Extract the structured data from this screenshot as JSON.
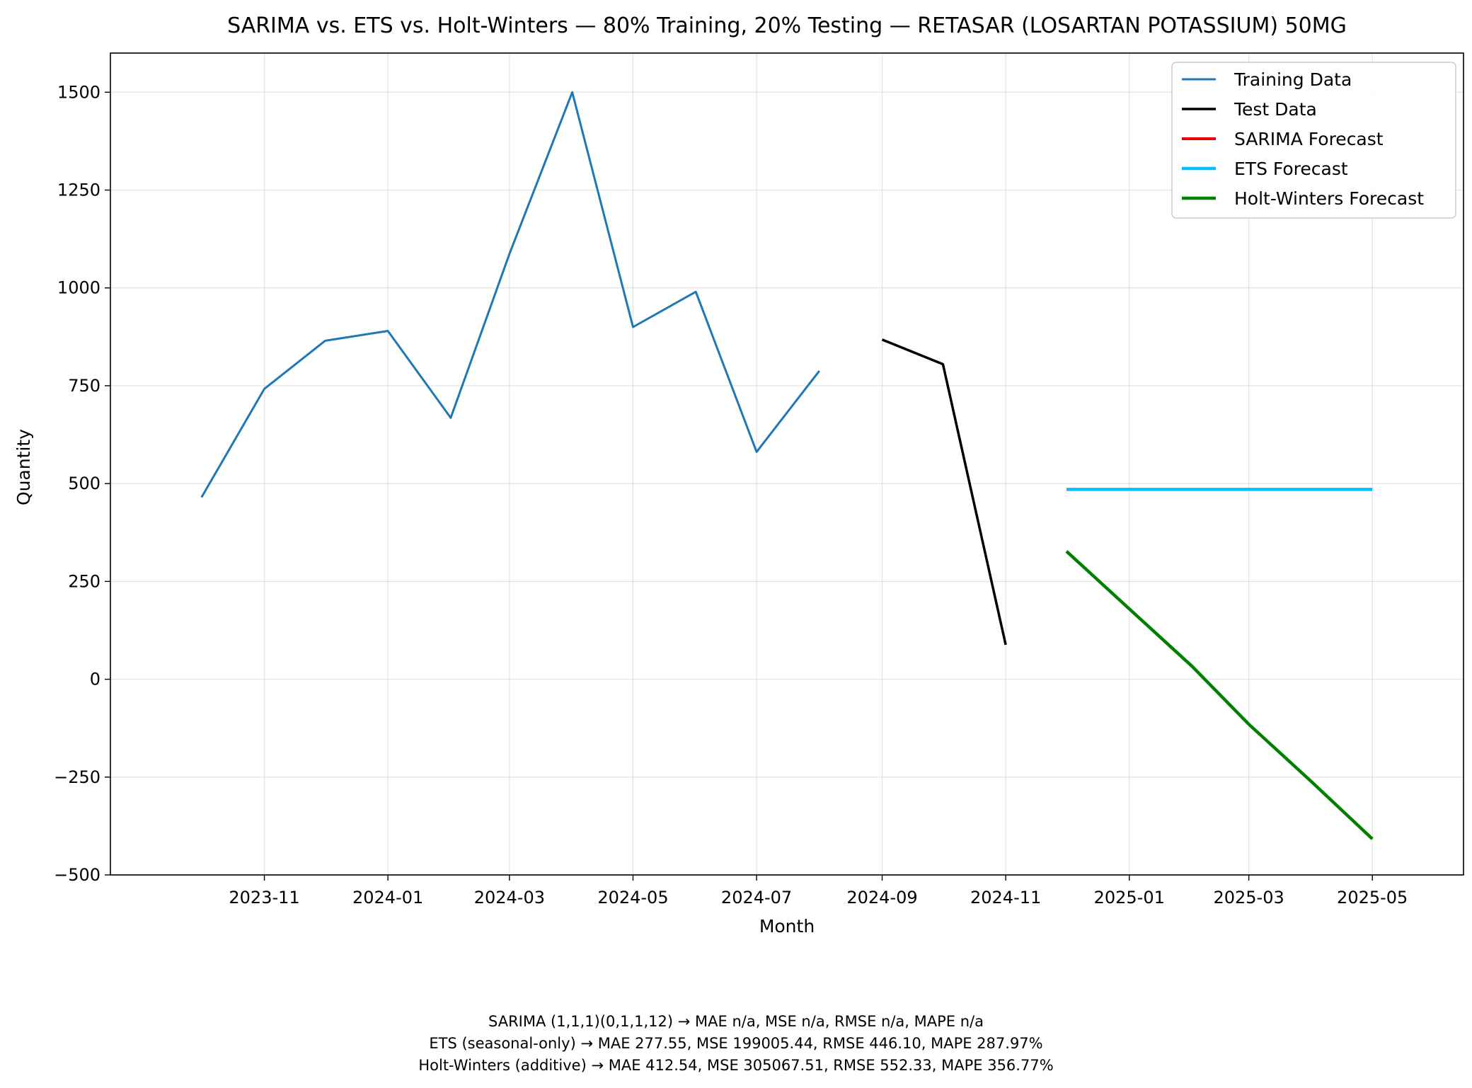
{
  "chart_data": {
    "type": "line",
    "title": "SARIMA vs. ETS vs. Holt-Winters — 80% Training, 20% Testing — RETASAR (LOSARTAN POTASSIUM) 50MG",
    "xlabel": "Month",
    "ylabel": "Quantity",
    "ylim": [
      -500,
      1600
    ],
    "xlim": [
      "2023-08-17",
      "2025-06-15"
    ],
    "x_ticks": [
      "2023-11",
      "2024-01",
      "2024-03",
      "2024-05",
      "2024-07",
      "2024-09",
      "2024-11",
      "2025-01",
      "2025-03",
      "2025-05"
    ],
    "y_ticks": [
      -500,
      -250,
      0,
      250,
      500,
      750,
      1000,
      1250,
      1500
    ],
    "y_tick_labels": [
      "−500",
      "−250",
      "0",
      "250",
      "500",
      "750",
      "1000",
      "1250",
      "1500"
    ],
    "grid": true,
    "legend_position": "top-right",
    "series": [
      {
        "name": "Training Data",
        "color": "#1f77b4",
        "width": 3,
        "x": [
          "2023-10-01",
          "2023-11-01",
          "2023-12-01",
          "2024-01-01",
          "2024-02-01",
          "2024-03-01",
          "2024-04-01",
          "2024-05-01",
          "2024-06-01",
          "2024-07-01",
          "2024-08-01"
        ],
        "y": [
          465,
          742,
          865,
          890,
          668,
          1087,
          1500,
          900,
          990,
          581,
          788
        ]
      },
      {
        "name": "Test Data",
        "color": "#000000",
        "width": 3.5,
        "x": [
          "2024-09-01",
          "2024-10-01",
          "2024-11-01"
        ],
        "y": [
          868,
          805,
          88
        ]
      },
      {
        "name": "SARIMA Forecast",
        "color": "#ee0000",
        "width": 4,
        "x": [],
        "y": []
      },
      {
        "name": "ETS Forecast",
        "color": "#00bfff",
        "width": 4.5,
        "x": [
          "2024-12-01",
          "2025-01-01",
          "2025-02-01",
          "2025-03-01",
          "2025-04-01",
          "2025-05-01"
        ],
        "y": [
          485,
          485,
          485,
          485,
          485,
          485
        ]
      },
      {
        "name": "Holt-Winters Forecast",
        "color": "#008000",
        "width": 4.5,
        "x": [
          "2024-12-01",
          "2025-01-01",
          "2025-02-01",
          "2025-03-01",
          "2025-04-01",
          "2025-05-01"
        ],
        "y": [
          327,
          180,
          33,
          -115,
          -262,
          -408
        ]
      }
    ]
  },
  "metrics": {
    "line1": "SARIMA (1,1,1)(0,1,1,12) → MAE n/a, MSE n/a, RMSE n/a, MAPE n/a",
    "line2": "ETS (seasonal-only) → MAE 277.55, MSE 199005.44, RMSE 446.10, MAPE 287.97%",
    "line3": "Holt-Winters (additive) → MAE 412.54, MSE 305067.51, RMSE 552.33, MAPE 356.77%"
  }
}
